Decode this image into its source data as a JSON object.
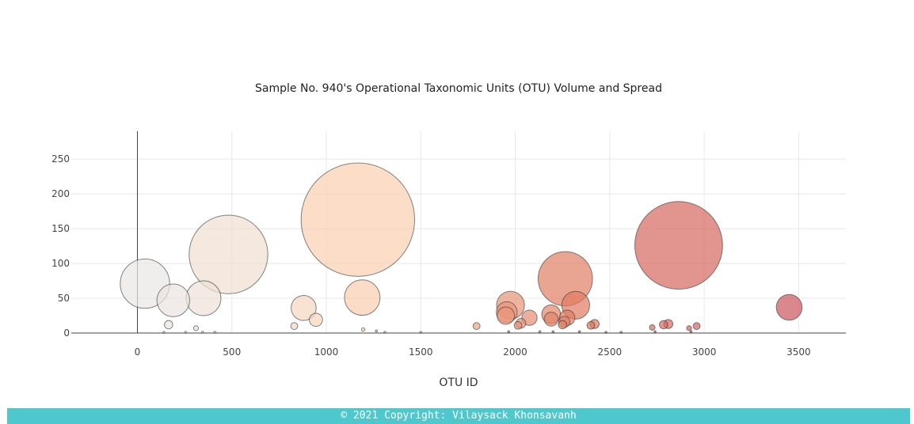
{
  "chart_data": {
    "type": "scatter",
    "title": "Sample No. 940's Operational Taxonomic Units (OTU) Volume and Spread",
    "xlabel": "OTU ID",
    "ylabel": "",
    "xlim": [
      -350,
      3750
    ],
    "ylim": [
      0,
      290
    ],
    "xticks": [
      0,
      500,
      1000,
      1500,
      2000,
      2500,
      3000,
      3500
    ],
    "yticks": [
      0,
      50,
      100,
      150,
      200,
      250
    ],
    "grid": true,
    "legend": "none",
    "points": [
      {
        "x": 40,
        "y": 71
      },
      {
        "x": 190,
        "y": 47
      },
      {
        "x": 350,
        "y": 50
      },
      {
        "x": 482,
        "y": 113
      },
      {
        "x": 880,
        "y": 36
      },
      {
        "x": 945,
        "y": 19
      },
      {
        "x": 1167,
        "y": 163
      },
      {
        "x": 1190,
        "y": 51
      },
      {
        "x": 165,
        "y": 12
      },
      {
        "x": 310,
        "y": 7
      },
      {
        "x": 830,
        "y": 10
      },
      {
        "x": 1195,
        "y": 5
      },
      {
        "x": 1795,
        "y": 10
      },
      {
        "x": 1975,
        "y": 40
      },
      {
        "x": 1955,
        "y": 30
      },
      {
        "x": 1950,
        "y": 25
      },
      {
        "x": 2075,
        "y": 22
      },
      {
        "x": 2030,
        "y": 14
      },
      {
        "x": 2015,
        "y": 11
      },
      {
        "x": 2190,
        "y": 27
      },
      {
        "x": 2190,
        "y": 20
      },
      {
        "x": 2265,
        "y": 78
      },
      {
        "x": 2320,
        "y": 40
      },
      {
        "x": 2275,
        "y": 22
      },
      {
        "x": 2260,
        "y": 16
      },
      {
        "x": 2250,
        "y": 12
      },
      {
        "x": 2400,
        "y": 11
      },
      {
        "x": 2420,
        "y": 13
      },
      {
        "x": 2865,
        "y": 126
      },
      {
        "x": 2785,
        "y": 12
      },
      {
        "x": 2810,
        "y": 13
      },
      {
        "x": 2725,
        "y": 8
      },
      {
        "x": 2960,
        "y": 10
      },
      {
        "x": 2920,
        "y": 7
      },
      {
        "x": 3450,
        "y": 37
      },
      {
        "x": 140,
        "y": 1
      },
      {
        "x": 255,
        "y": 1
      },
      {
        "x": 345,
        "y": 1
      },
      {
        "x": 410,
        "y": 1
      },
      {
        "x": 1265,
        "y": 3
      },
      {
        "x": 1310,
        "y": 1
      },
      {
        "x": 1500,
        "y": 1
      },
      {
        "x": 1965,
        "y": 2
      },
      {
        "x": 2130,
        "y": 2
      },
      {
        "x": 2200,
        "y": 2
      },
      {
        "x": 2340,
        "y": 2
      },
      {
        "x": 2480,
        "y": 1
      },
      {
        "x": 2560,
        "y": 1
      },
      {
        "x": 2740,
        "y": 2
      },
      {
        "x": 2930,
        "y": 2
      }
    ],
    "color_range": [
      "#e8e8e8",
      "#f9cfb0",
      "#e07a5f",
      "#c9535d"
    ]
  },
  "footer": {
    "text": "© 2021 Copyright: Vilaysack Khonsavanh"
  }
}
